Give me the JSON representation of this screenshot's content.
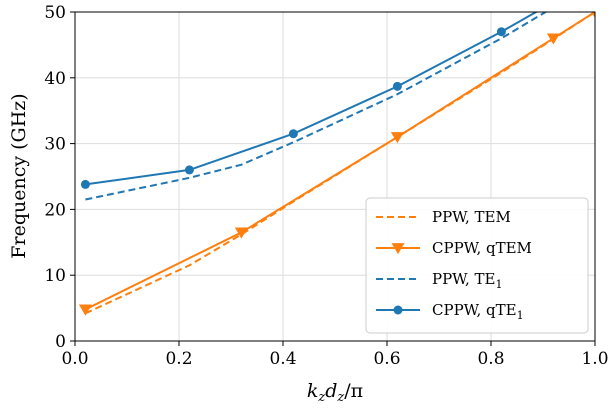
{
  "chart_data": {
    "type": "line",
    "xlabel": "k_z d_z/π",
    "xlabel_parts": {
      "k": "k",
      "k_sub": "z",
      "d": "d",
      "d_sub": "z",
      "tail": "/π"
    },
    "ylabel": "Frequency (GHz)",
    "xlim": [
      0.0,
      1.0
    ],
    "ylim": [
      0,
      50
    ],
    "xticks": [
      0.0,
      0.2,
      0.4,
      0.6,
      0.8,
      1.0
    ],
    "xtick_labels": [
      "0.0",
      "0.2",
      "0.4",
      "0.6",
      "0.8",
      "1.0"
    ],
    "yticks": [
      0,
      10,
      20,
      30,
      40,
      50
    ],
    "ytick_labels": [
      "0",
      "10",
      "20",
      "30",
      "40",
      "50"
    ],
    "grid": true,
    "legend_position": "bottom-right",
    "series": [
      {
        "name": "PPW, TEM",
        "color": "#ff7f0e",
        "dash": true,
        "marker": "none",
        "x": [
          0.02,
          0.22,
          0.32,
          0.42,
          0.62,
          0.82,
          1.0
        ],
        "y": [
          4.2,
          11.5,
          16.2,
          21.2,
          31.0,
          40.8,
          50.0
        ]
      },
      {
        "name": "CPPW, qTEM",
        "color": "#ff7f0e",
        "dash": false,
        "marker": "triangle-down",
        "x": [
          0.02,
          0.32,
          0.62,
          0.92,
          1.0
        ],
        "y": [
          4.8,
          16.5,
          31.0,
          46.0,
          50.0
        ]
      },
      {
        "name": "PPW, TE",
        "name_sub": "1",
        "color": "#1f77b4",
        "dash": true,
        "marker": "none",
        "x": [
          0.02,
          0.22,
          0.32,
          0.42,
          0.62,
          0.82,
          0.905
        ],
        "y": [
          21.5,
          24.8,
          26.8,
          30.2,
          37.5,
          46.0,
          50.0
        ]
      },
      {
        "name": "CPPW, qTE",
        "name_sub": "1",
        "color": "#1f77b4",
        "dash": false,
        "marker": "circle",
        "x": [
          0.02,
          0.22,
          0.42,
          0.62,
          0.82,
          0.92
        ],
        "y": [
          23.8,
          26.0,
          31.5,
          38.7,
          47.0,
          51.5
        ]
      }
    ]
  }
}
